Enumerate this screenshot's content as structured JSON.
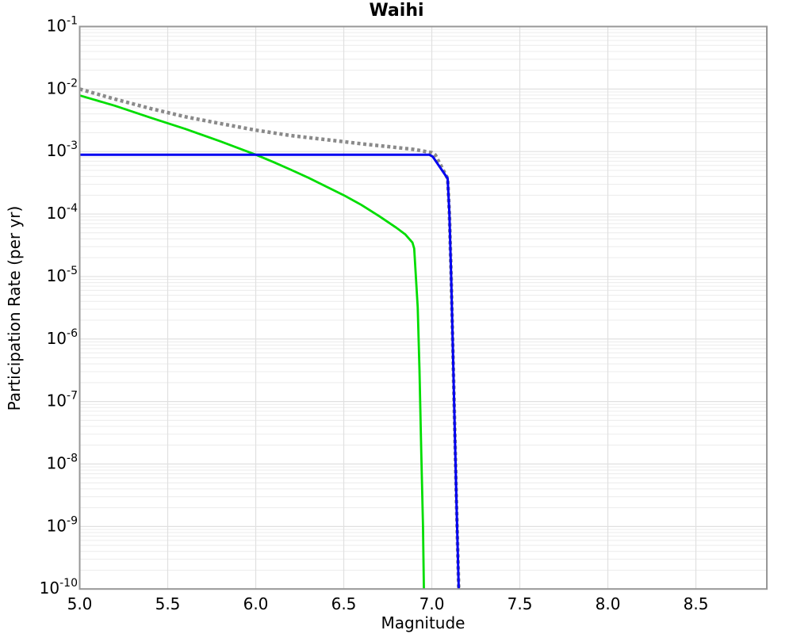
{
  "figure": {
    "title": "Waihi",
    "xlabel": "Magnitude",
    "ylabel": "Participation Rate (per yr)"
  },
  "chart_data": {
    "type": "line",
    "title": "Waihi",
    "xlabel": "Magnitude",
    "ylabel": "Participation Rate (per yr)",
    "x_axis": {
      "scale": "linear",
      "min": 5.0,
      "max": 8.903,
      "ticks": [
        5.0,
        5.5,
        6.0,
        6.5,
        7.0,
        7.5,
        8.0,
        8.5
      ],
      "tick_labels": [
        "5.0",
        "5.5",
        "6.0",
        "6.5",
        "7.0",
        "7.5",
        "8.0",
        "8.5"
      ]
    },
    "y_axis": {
      "scale": "log",
      "min": 1e-10,
      "max": 0.1,
      "tick_exponents": [
        -1,
        -2,
        -3,
        -4,
        -5,
        -6,
        -7,
        -8,
        -9,
        -10
      ],
      "tick_base": "10"
    },
    "grid": {
      "major": true,
      "minor_log": true,
      "minor_color": "#ececec",
      "major_color": "#e0e0e0",
      "frame_color": "#979797",
      "background": "#ffffff"
    },
    "legend": null,
    "series": [
      {
        "name": "gray-dotted",
        "color": "#8a8a8a",
        "style": "dotted",
        "width": 4.5,
        "dash": [
          4,
          3.6
        ],
        "points": [
          [
            5.0,
            0.01
          ],
          [
            5.2,
            0.0069
          ],
          [
            5.4,
            0.0049
          ],
          [
            5.6,
            0.0036
          ],
          [
            5.8,
            0.0028
          ],
          [
            6.0,
            0.0022
          ],
          [
            6.2,
            0.0018
          ],
          [
            6.4,
            0.00155
          ],
          [
            6.6,
            0.00133
          ],
          [
            6.8,
            0.00116
          ],
          [
            6.9,
            0.00108
          ],
          [
            7.0,
            0.00096
          ],
          [
            7.02,
            0.00088
          ],
          [
            7.09,
            0.00037
          ],
          [
            7.1,
            0.0001
          ],
          [
            7.11,
            1e-05
          ],
          [
            7.12,
            6.3e-07
          ],
          [
            7.13,
            4e-08
          ],
          [
            7.14,
            2.5e-09
          ],
          [
            7.153,
            1e-10
          ]
        ]
      },
      {
        "name": "green-solid",
        "color": "#00dd00",
        "style": "solid",
        "width": 2.8,
        "dash": null,
        "points": [
          [
            5.0,
            0.0079
          ],
          [
            5.2,
            0.0054
          ],
          [
            5.4,
            0.0035
          ],
          [
            5.6,
            0.0023
          ],
          [
            5.8,
            0.00145
          ],
          [
            6.0,
            0.00089
          ],
          [
            6.1,
            0.00068
          ],
          [
            6.2,
            0.00051
          ],
          [
            6.3,
            0.00038
          ],
          [
            6.4,
            0.000275
          ],
          [
            6.5,
            0.0002
          ],
          [
            6.6,
            0.00014
          ],
          [
            6.7,
            9.3e-05
          ],
          [
            6.8,
            6e-05
          ],
          [
            6.85,
            4.7e-05
          ],
          [
            6.89,
            3.5e-05
          ],
          [
            6.9,
            2.8e-05
          ],
          [
            6.92,
            3.2e-06
          ],
          [
            6.93,
            3.2e-07
          ],
          [
            6.94,
            1.6e-08
          ],
          [
            6.95,
            1e-09
          ],
          [
            6.955,
            1e-10
          ]
        ]
      },
      {
        "name": "blue-solid",
        "color": "#0000f0",
        "style": "solid",
        "width": 3,
        "dash": null,
        "points": [
          [
            5.0,
            0.00089
          ],
          [
            6.985,
            0.00089
          ],
          [
            7.005,
            0.00083
          ],
          [
            7.09,
            0.00037
          ],
          [
            7.1,
            0.0001
          ],
          [
            7.11,
            1e-05
          ],
          [
            7.12,
            6.3e-07
          ],
          [
            7.13,
            4e-08
          ],
          [
            7.14,
            2.5e-09
          ],
          [
            7.153,
            1e-10
          ]
        ]
      }
    ]
  }
}
